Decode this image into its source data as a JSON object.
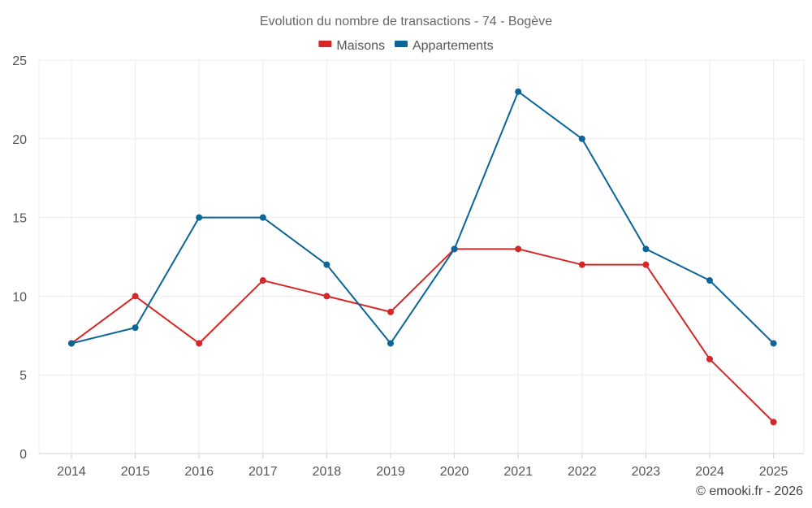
{
  "chart_data": {
    "type": "line",
    "title": "Evolution du nombre de transactions - 74 - Bogève",
    "xlabel": "",
    "ylabel": "",
    "categories": [
      "2014",
      "2015",
      "2016",
      "2017",
      "2018",
      "2019",
      "2020",
      "2021",
      "2022",
      "2023",
      "2024",
      "2025"
    ],
    "ylim": [
      0,
      25
    ],
    "yticks": [
      "0",
      "5",
      "10",
      "15",
      "20",
      "25"
    ],
    "grid": true,
    "legend_position": "top-center",
    "series": [
      {
        "name": "Maisons",
        "color": "#d62728",
        "values": [
          7,
          10,
          7,
          11,
          10,
          9,
          13,
          13,
          12,
          12,
          6,
          2
        ]
      },
      {
        "name": "Appartements",
        "color": "#0a6698",
        "values": [
          7,
          8,
          15,
          15,
          12,
          7,
          13,
          23,
          20,
          13,
          11,
          7
        ]
      }
    ]
  },
  "footer": {
    "credit": "© emooki.fr - 2026"
  }
}
